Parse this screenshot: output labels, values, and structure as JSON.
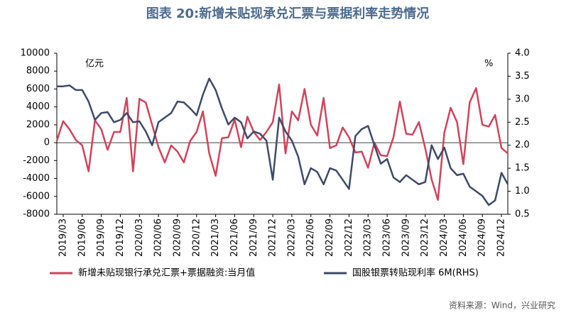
{
  "chart_data": {
    "type": "line",
    "title": "图表 20:新增未贴现承兑汇票与票据利率走势情况",
    "y_label": "亿元",
    "y2_label": "%",
    "source": "资料来源：Wind，兴业研究",
    "categories": [
      null,
      "2019/03",
      null,
      null,
      "2019/06",
      null,
      null,
      "2019/09",
      null,
      null,
      "2019/12",
      null,
      null,
      "2020/03",
      null,
      null,
      "2020/06",
      null,
      null,
      "2020/09",
      null,
      null,
      "2020/12",
      null,
      null,
      "2021/03",
      null,
      null,
      "2021/06",
      null,
      null,
      "2021/09",
      null,
      null,
      "2021/12",
      null,
      null,
      "2022/03",
      null,
      null,
      "2022/06",
      null,
      null,
      "2022/09",
      null,
      null,
      "2022/12",
      null,
      null,
      "2023/03",
      null,
      null,
      "2023/06",
      null,
      null,
      "2023/09",
      null,
      null,
      "2023/12",
      null,
      null,
      "2024/03",
      null,
      null,
      "2024/06",
      null,
      null,
      "2024/09",
      null,
      null,
      "2024/12",
      null
    ],
    "series": [
      {
        "name": "新增未贴现银行承兑汇票+票据融资:当月值",
        "color": "#d1435b",
        "axis": "y",
        "values": [
          200,
          2400,
          1500,
          300,
          -300,
          -3200,
          2500,
          1500,
          -800,
          1200,
          1200,
          5000,
          -3200,
          4900,
          4500,
          2000,
          -500,
          -2200,
          -300,
          -1000,
          -2200,
          200,
          1200,
          3500,
          -1200,
          -3700,
          500,
          600,
          2600,
          -500,
          2900,
          1200,
          300,
          1200,
          2300,
          6500,
          -1200,
          3500,
          2500,
          6000,
          2000,
          800,
          5000,
          -600,
          -300,
          1700,
          600,
          -1100,
          -1000,
          -2800,
          0,
          -1400,
          -1500,
          600,
          4600,
          1000,
          900,
          2300,
          -600,
          -4100,
          -6400,
          1100,
          3900,
          2300,
          -2400,
          4500,
          6100,
          2000,
          1800,
          3100,
          -600,
          -1200
        ]
      },
      {
        "name": "国股银票转贴现利率 6M(RHS)",
        "color": "#3e4a66",
        "axis": "y2",
        "values": [
          3.28,
          3.28,
          3.3,
          3.2,
          3.2,
          2.95,
          2.55,
          2.7,
          2.72,
          2.5,
          2.55,
          2.7,
          2.5,
          2.52,
          2.3,
          2.0,
          2.5,
          2.6,
          2.7,
          2.95,
          2.93,
          2.8,
          2.65,
          3.1,
          3.45,
          3.2,
          2.8,
          2.45,
          2.6,
          2.5,
          2.15,
          2.3,
          2.25,
          2.1,
          1.25,
          2.6,
          2.3,
          2.1,
          1.75,
          1.15,
          1.5,
          1.42,
          1.15,
          1.5,
          1.45,
          1.25,
          1.05,
          2.2,
          2.35,
          2.42,
          2.0,
          1.6,
          1.7,
          1.3,
          1.2,
          1.35,
          1.25,
          1.15,
          1.2,
          2.0,
          1.7,
          1.95,
          1.5,
          1.35,
          1.38,
          1.1,
          1.0,
          0.9,
          0.7,
          0.8,
          1.4,
          1.15
        ]
      }
    ],
    "ylim": [
      -8000,
      10000
    ],
    "yticks": [
      -8000,
      -6000,
      -4000,
      -2000,
      0,
      2000,
      4000,
      6000,
      8000,
      10000
    ],
    "y2lim": [
      0.5,
      4
    ],
    "y2ticks": [
      {
        "value": 0.5,
        "label": "0.5"
      },
      {
        "value": 1,
        "label": "1.0"
      },
      {
        "value": 1.5,
        "label": "1.5"
      },
      {
        "value": 2,
        "label": "2.0"
      },
      {
        "value": 2.5,
        "label": "2.5"
      },
      {
        "value": 3,
        "label": "3.0"
      },
      {
        "value": 3.5,
        "label": "3.5"
      },
      {
        "value": 4,
        "label": "4.0"
      }
    ]
  }
}
